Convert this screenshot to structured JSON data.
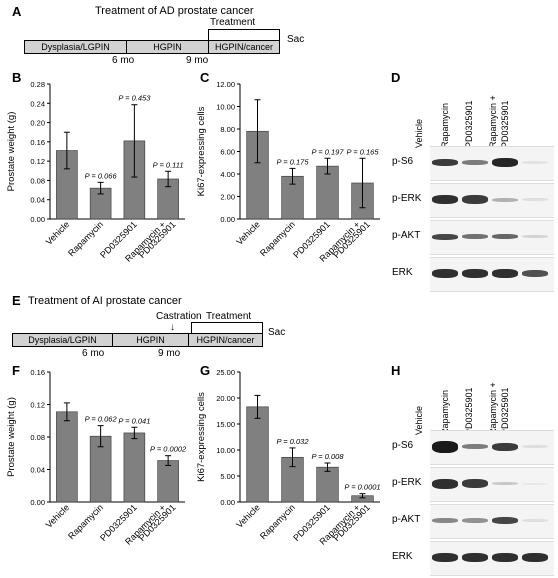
{
  "panelA": {
    "letter": "A",
    "title": "Treatment of AD prostate cancer",
    "stages": [
      "Dysplasia/LGPIN",
      "HGPIN",
      "HGPIN/cancer"
    ],
    "ticks": [
      "6 mo",
      "9 mo"
    ],
    "treatment": "Treatment",
    "sac": "Sac"
  },
  "panelE": {
    "letter": "E",
    "title": "Treatment of AI prostate cancer",
    "stages": [
      "Dysplasia/LGPIN",
      "HGPIN",
      "HGPIN/cancer"
    ],
    "ticks": [
      "6 mo",
      "9 mo"
    ],
    "castration": "Castration",
    "treatment": "Treatment",
    "sac": "Sac"
  },
  "panelD": {
    "letter": "D",
    "lanes": [
      "Vehicle",
      "Rapamycin",
      "PD0325901",
      "Rapamycin +",
      "PD0325901"
    ],
    "rows": [
      "p-S6",
      "p-ERK",
      "p-AKT",
      "ERK"
    ]
  },
  "panelH": {
    "letter": "H",
    "lanes": [
      "Vehicle",
      "Rapamycin",
      "PD0325901",
      "Rapamycin +",
      "PD0325901"
    ],
    "rows": [
      "p-S6",
      "p-ERK",
      "p-AKT",
      "ERK"
    ]
  },
  "chart_data": [
    {
      "panel": "B",
      "type": "bar",
      "categories": [
        "Vehicle",
        "Rapamycin",
        "PD0325901",
        "Rapamycin + PD0325901"
      ],
      "values": [
        0.142,
        0.064,
        0.162,
        0.083
      ],
      "errors": [
        0.038,
        0.012,
        0.075,
        0.016
      ],
      "annotations": [
        "",
        "P = 0.066",
        "P = 0.453",
        "P = 0.111"
      ],
      "ylabel": "Prostate weight (g)",
      "ylim": [
        0,
        0.28
      ],
      "yticks": [
        "0.00",
        "0.04",
        "0.08",
        "0.12",
        "0.16",
        "0.20",
        "0.24",
        "0.28"
      ]
    },
    {
      "panel": "C",
      "type": "bar",
      "categories": [
        "Vehicle",
        "Rapamycin",
        "PD0325901",
        "Rapamycin + PD0325901"
      ],
      "values": [
        7.8,
        3.8,
        4.7,
        3.2
      ],
      "errors": [
        2.8,
        0.7,
        0.7,
        2.2
      ],
      "annotations": [
        "",
        "P = 0.175",
        "P = 0.197",
        "P = 0.165"
      ],
      "ylabel": "Ki67-expressing cells",
      "ylim": [
        0,
        12
      ],
      "yticks": [
        "0.00",
        "2.00",
        "4.00",
        "6.00",
        "8.00",
        "10.00",
        "12.00"
      ]
    },
    {
      "panel": "F",
      "type": "bar",
      "categories": [
        "Vehicle",
        "Rapamycin",
        "PD0325901",
        "Rapamycin + PD0325901"
      ],
      "values": [
        0.111,
        0.081,
        0.085,
        0.051
      ],
      "errors": [
        0.011,
        0.013,
        0.007,
        0.006
      ],
      "annotations": [
        "",
        "P = 0.062",
        "P = 0.041",
        "P = 0.0002"
      ],
      "ylabel": "Prostate weight (g)",
      "ylim": [
        0,
        0.16
      ],
      "yticks": [
        "0.00",
        "0.04",
        "0.08",
        "0.12",
        "0.16"
      ]
    },
    {
      "panel": "G",
      "type": "bar",
      "categories": [
        "Vehicle",
        "Rapamycin",
        "PD0325901",
        "Rapamycin + PD0325901"
      ],
      "values": [
        18.3,
        8.6,
        6.7,
        1.2
      ],
      "errors": [
        2.2,
        1.8,
        0.8,
        0.4
      ],
      "annotations": [
        "",
        "P = 0.032",
        "P = 0.008",
        "P = 0.0001"
      ],
      "ylabel": "Ki67-expressing cells",
      "ylim": [
        0,
        25
      ],
      "yticks": [
        "0.00",
        "5.00",
        "10.00",
        "15.00",
        "20.00",
        "25.00"
      ]
    }
  ]
}
